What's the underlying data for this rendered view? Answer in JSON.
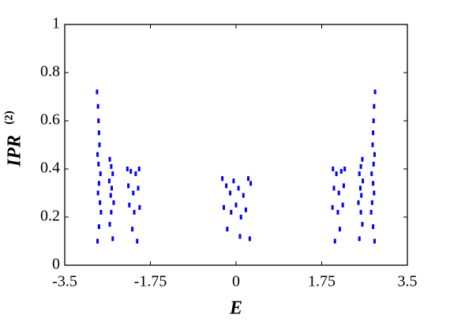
{
  "chart_data": {
    "type": "scatter",
    "xlabel": "E",
    "ylabel": "IPR",
    "ylabel_sup": "(2)",
    "xlim": [
      -3.5,
      3.5
    ],
    "ylim": [
      0,
      1
    ],
    "xticks": [
      -3.5,
      -1.75,
      0,
      1.75,
      3.5
    ],
    "yticks": [
      0,
      0.2,
      0.4,
      0.6,
      0.8,
      1
    ],
    "series": [
      {
        "color": "#0000ff",
        "x": [
          -2.84,
          -2.82,
          -2.81,
          -2.8,
          -2.79,
          -2.83,
          -2.81,
          -2.77,
          -2.8,
          -2.82,
          -2.78,
          -2.76,
          -2.8,
          -2.83,
          -2.58,
          -2.55,
          -2.52,
          -2.59,
          -2.54,
          -2.56,
          -2.5,
          -2.55,
          -2.58,
          -2.52,
          -2.22,
          -2.15,
          -2.05,
          -1.98,
          -2.2,
          -2.1,
          -2.0,
          -2.18,
          -2.08,
          -1.97,
          -2.12,
          -2.02,
          -0.28,
          -0.2,
          -0.12,
          -0.05,
          0.05,
          0.15,
          0.25,
          0.3,
          -0.25,
          -0.1,
          0.0,
          0.1,
          0.2,
          -0.18,
          0.08,
          0.28,
          2.22,
          2.15,
          2.05,
          1.98,
          2.2,
          2.1,
          2.0,
          2.18,
          2.08,
          1.97,
          2.12,
          2.02,
          2.58,
          2.55,
          2.52,
          2.59,
          2.54,
          2.56,
          2.5,
          2.55,
          2.58,
          2.52,
          2.84,
          2.82,
          2.81,
          2.8,
          2.79,
          2.83,
          2.81,
          2.77,
          2.8,
          2.82,
          2.78,
          2.76,
          2.8,
          2.83
        ],
        "values": [
          0.72,
          0.66,
          0.6,
          0.55,
          0.5,
          0.46,
          0.42,
          0.38,
          0.34,
          0.3,
          0.26,
          0.22,
          0.16,
          0.1,
          0.44,
          0.41,
          0.38,
          0.35,
          0.32,
          0.29,
          0.26,
          0.22,
          0.17,
          0.11,
          0.4,
          0.39,
          0.38,
          0.4,
          0.33,
          0.3,
          0.32,
          0.25,
          0.22,
          0.24,
          0.15,
          0.1,
          0.36,
          0.33,
          0.3,
          0.35,
          0.32,
          0.29,
          0.36,
          0.34,
          0.24,
          0.22,
          0.25,
          0.2,
          0.23,
          0.15,
          0.12,
          0.11,
          0.4,
          0.39,
          0.38,
          0.4,
          0.33,
          0.3,
          0.32,
          0.25,
          0.22,
          0.24,
          0.15,
          0.1,
          0.44,
          0.41,
          0.38,
          0.35,
          0.32,
          0.29,
          0.26,
          0.22,
          0.17,
          0.11,
          0.72,
          0.66,
          0.6,
          0.55,
          0.5,
          0.46,
          0.42,
          0.38,
          0.34,
          0.3,
          0.26,
          0.22,
          0.16,
          0.1
        ]
      }
    ]
  }
}
